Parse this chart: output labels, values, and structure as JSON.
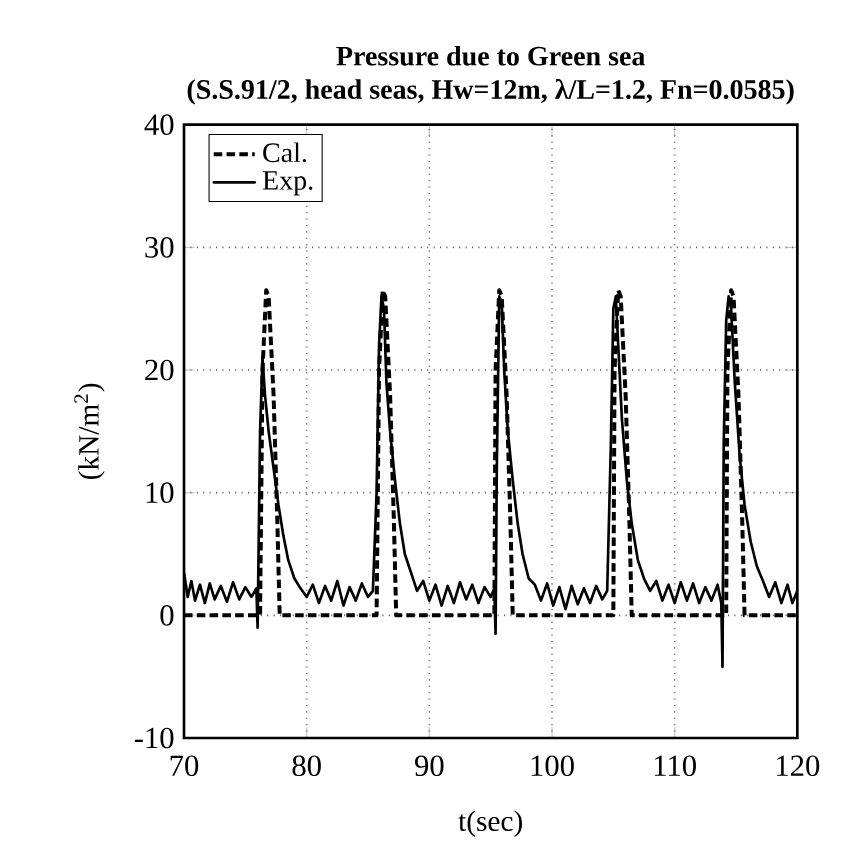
{
  "chart_data": {
    "type": "line",
    "title": "Pressure due to Green sea",
    "subtitle": "(S.S.91/2, head seas, Hw=12m, λ/L=1.2, Fn=0.0585)",
    "xlabel": "t(sec)",
    "ylabel": "(kN/m$^{2}$)",
    "xlim": [
      70,
      120
    ],
    "ylim": [
      -10,
      40
    ],
    "xticks": [
      70,
      80,
      90,
      100,
      110,
      120
    ],
    "yticks": [
      -10,
      0,
      10,
      20,
      30,
      40
    ],
    "grid": true,
    "legend": "top left",
    "marker": "none",
    "series": [
      {
        "name": "Cal.",
        "color": "#000000",
        "line_style": "dashed",
        "x": [
          70,
          76.2,
          76.4,
          76.7,
          76.9,
          77.3,
          77.6,
          77.8,
          85.7,
          85.9,
          86.2,
          86.4,
          86.8,
          87.1,
          87.3,
          95.3,
          95.4,
          95.7,
          95.9,
          96.3,
          96.6,
          96.8,
          105.0,
          105.1,
          105.4,
          105.6,
          106.0,
          106.3,
          106.5,
          114.2,
          114.3,
          114.6,
          114.8,
          115.2,
          115.5,
          115.7,
          120
        ],
        "values": [
          0,
          0,
          20,
          26.5,
          26,
          18,
          8,
          0,
          0,
          20,
          26.5,
          26,
          18,
          8,
          0,
          0,
          20,
          26.5,
          26,
          18,
          8,
          0,
          0,
          20,
          26.5,
          26,
          18,
          8,
          0,
          0,
          20,
          26.5,
          26,
          18,
          8,
          0,
          0
        ]
      },
      {
        "name": "Exp.",
        "color": "#000000",
        "line_style": "solid",
        "x": [
          70.0,
          70.3,
          70.6,
          70.9,
          71.3,
          71.7,
          72.1,
          72.5,
          73.0,
          73.5,
          74.0,
          74.5,
          75.0,
          75.5,
          75.9,
          76.0,
          76.2,
          76.4,
          76.6,
          76.9,
          77.3,
          77.7,
          78.1,
          78.5,
          79.0,
          79.5,
          80.0,
          80.5,
          81.0,
          81.5,
          82.0,
          82.5,
          83.0,
          83.5,
          84.0,
          84.5,
          85.0,
          85.4,
          85.7,
          85.9,
          86.1,
          86.3,
          86.5,
          86.8,
          87.2,
          87.6,
          88.0,
          88.5,
          89.0,
          89.5,
          90.0,
          90.5,
          91.0,
          91.5,
          92.0,
          92.5,
          93.0,
          93.5,
          94.0,
          94.5,
          95.0,
          95.3,
          95.4,
          95.5,
          95.7,
          95.9,
          96.1,
          96.4,
          96.8,
          97.2,
          97.6,
          98.1,
          98.6,
          99.1,
          99.6,
          100.1,
          100.6,
          101.1,
          101.6,
          102.1,
          102.6,
          103.1,
          103.6,
          104.1,
          104.5,
          104.8,
          105.0,
          105.2,
          105.4,
          105.7,
          106.1,
          106.5,
          107.0,
          107.5,
          108.0,
          108.5,
          109.0,
          109.5,
          110.0,
          110.5,
          111.0,
          111.5,
          112.0,
          112.5,
          113.0,
          113.5,
          113.8,
          113.9,
          114.0,
          114.2,
          114.4,
          114.6,
          114.9,
          115.3,
          115.7,
          116.2,
          116.7,
          117.2,
          117.7,
          118.2,
          118.7,
          119.2,
          119.6,
          120.0
        ],
        "values": [
          3.5,
          1.5,
          2.8,
          1.2,
          2.5,
          1.0,
          2.6,
          1.3,
          2.4,
          1.1,
          2.7,
          1.3,
          2.3,
          1.5,
          2.2,
          -1.0,
          15,
          21,
          18,
          15,
          12,
          9,
          6.5,
          4.5,
          3.0,
          2.2,
          1.5,
          2.5,
          1.0,
          2.4,
          1.2,
          2.8,
          0.8,
          2.3,
          1.2,
          2.6,
          1.5,
          2.0,
          10,
          22,
          26,
          25,
          19,
          15,
          11,
          7.5,
          5.0,
          3.5,
          2.0,
          2.8,
          1.2,
          2.5,
          0.8,
          2.4,
          1.0,
          2.7,
          1.3,
          2.5,
          1.0,
          2.3,
          1.5,
          2.2,
          -1.5,
          12,
          26,
          25.5,
          20,
          15,
          11,
          7.5,
          5.0,
          3.0,
          2.5,
          1.2,
          2.6,
          0.8,
          2.3,
          0.5,
          2.4,
          0.9,
          2.2,
          1.0,
          2.4,
          1.3,
          2.0,
          14,
          25,
          26,
          22,
          16,
          11,
          7.5,
          4.5,
          3.0,
          2.0,
          2.8,
          1.2,
          2.5,
          1.0,
          2.7,
          1.2,
          2.6,
          1.0,
          2.3,
          1.2,
          2.5,
          1.0,
          -4.2,
          14,
          24,
          26,
          25,
          19,
          13,
          9,
          6,
          4,
          2.8,
          1.5,
          2.7,
          1.0,
          2.5,
          1.0,
          2.0
        ]
      }
    ]
  }
}
